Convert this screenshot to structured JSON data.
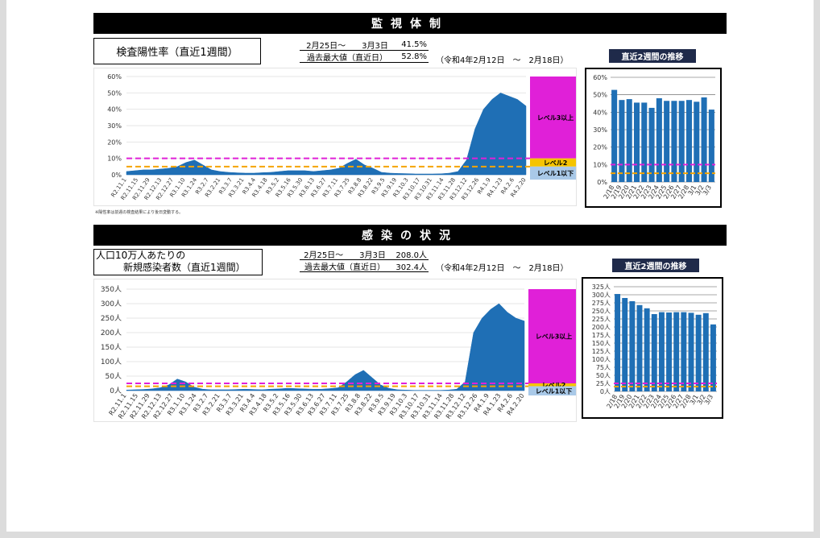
{
  "sections": {
    "monitoring": {
      "title": "監視体制",
      "metric_title": "検査陽性率（直近1週間）",
      "current_period": "2月25日～　　3月3日",
      "current_value": "41.5%",
      "max_label": "過去最大値（直近日）",
      "max_value": "52.8%",
      "max_period": "（令和4年2月12日　～　2月18日）",
      "footnote": "※陽性率は前週の検査結果により後日変動する。",
      "trend_title": "直近2週間の推移"
    },
    "infection": {
      "title": "感染の状況",
      "metric_title_line1": "人口10万人あたりの",
      "metric_title_line2": "新規感染者数（直近1週間）",
      "current_period": "2月25日～　　3月3日",
      "current_value": "208.0人",
      "max_label": "過去最大値（直近日）",
      "max_value": "302.4人",
      "max_period": "（令和4年2月12日　～　2月18日）",
      "trend_title": "直近2週間の推移"
    }
  },
  "level_labels": {
    "level3": "レベル3以上",
    "level2": "レベル2",
    "level1": "レベル1以下"
  },
  "colors": {
    "series": "#1f6fb5",
    "level3": "#e020d8",
    "level2": "#f5c400",
    "level1": "#a9c9e8",
    "level3_line": "#e020d8",
    "level2_line": "#f5a400"
  },
  "chart_data": [
    {
      "type": "area",
      "name": "positivity-main",
      "ylim": [
        0,
        60
      ],
      "yticks": [
        "0%",
        "10%",
        "20%",
        "30%",
        "40%",
        "50%",
        "60%"
      ],
      "xtick_labels": [
        "R2.11.1",
        "R2.11.15",
        "R2.11.29",
        "R2.12.13",
        "R2.12.27",
        "R3.1.10",
        "R3.1.24",
        "R3.2.7",
        "R3.2.21",
        "R3.3.7",
        "R3.3.21",
        "R3.4.4",
        "R3.4.18",
        "R3.5.2",
        "R3.5.16",
        "R3.5.30",
        "R3.6.13",
        "R3.6.27",
        "R3.7.11",
        "R3.7.25",
        "R3.8.8",
        "R3.8.22",
        "R3.9.5",
        "R3.9.19",
        "R3.10.3",
        "R3.10.17",
        "R3.10.31",
        "R3.11.14",
        "R3.11.28",
        "R3.12.12",
        "R3.12.26",
        "R4.1.9",
        "R4.1.23",
        "R4.2.6",
        "R4.2.20"
      ],
      "values": [
        2,
        2.5,
        3,
        3,
        3.5,
        4,
        5,
        7.5,
        9,
        6,
        3,
        2,
        1.5,
        1.2,
        1,
        1,
        1.3,
        1.5,
        2,
        2.5,
        2.5,
        2.5,
        2,
        2.5,
        3,
        4,
        7,
        9.5,
        6,
        4,
        1.5,
        1,
        0.8,
        0.7,
        0.5,
        0.5,
        0.5,
        0.6,
        1,
        2,
        9,
        28,
        40,
        46,
        50,
        48,
        46,
        42
      ],
      "level_lines": [
        {
          "level": "レベル3以上",
          "value": 10
        },
        {
          "level": "レベル2",
          "value": 5
        }
      ]
    },
    {
      "type": "bar",
      "name": "positivity-2weeks",
      "ylim": [
        0,
        60
      ],
      "yticks": [
        "0%",
        "10%",
        "20%",
        "30%",
        "40%",
        "50%",
        "60%"
      ],
      "categories": [
        "2/18",
        "2/19",
        "2/20",
        "2/21",
        "2/22",
        "2/23",
        "2/24",
        "2/25",
        "2/26",
        "2/27",
        "2/28",
        "3/1",
        "3/2",
        "3/3"
      ],
      "values": [
        52.8,
        47,
        47.5,
        45.5,
        45.5,
        42.5,
        48,
        46.5,
        46.5,
        46.5,
        47,
        46,
        48.5,
        41.5
      ],
      "level_lines": [
        {
          "level": "レベル3以上",
          "value": 10
        },
        {
          "level": "レベル2",
          "value": 5
        }
      ]
    },
    {
      "type": "area",
      "name": "cases-main",
      "ylim": [
        0,
        350
      ],
      "yticks": [
        "0人",
        "50人",
        "100人",
        "150人",
        "200人",
        "250人",
        "300人",
        "350人"
      ],
      "xtick_labels": [
        "R2.11.1",
        "R2.11.15",
        "R2.11.29",
        "R2.12.13",
        "R2.12.27",
        "R3.1.10",
        "R3.1.24",
        "R3.2.7",
        "R3.2.21",
        "R3.3.7",
        "R3.3.21",
        "R3.4.4",
        "R3.4.18",
        "R3.5.2",
        "R3.5.16",
        "R3.5.30",
        "R3.6.13",
        "R3.6.27",
        "R3.7.11",
        "R3.7.25",
        "R3.8.8",
        "R3.8.22",
        "R3.9.5",
        "R3.9.19",
        "R3.10.3",
        "R3.10.17",
        "R3.10.31",
        "R3.11.14",
        "R3.11.28",
        "R3.12.12",
        "R3.12.26",
        "R4.1.9",
        "R4.1.23",
        "R4.2.6",
        "R4.2.20"
      ],
      "values": [
        2,
        3,
        4,
        6,
        10,
        20,
        40,
        30,
        12,
        5,
        3,
        3,
        3,
        4,
        5,
        4,
        3,
        5,
        6,
        8,
        7,
        6,
        5,
        5,
        7,
        10,
        30,
        55,
        70,
        45,
        20,
        8,
        3,
        2,
        1,
        1,
        1,
        1,
        2,
        5,
        30,
        200,
        250,
        280,
        300,
        270,
        250,
        240
      ],
      "level_lines": [
        {
          "level": "レベル3以上",
          "value": 25
        },
        {
          "level": "レベル2",
          "value": 15
        }
      ]
    },
    {
      "type": "bar",
      "name": "cases-2weeks",
      "ylim": [
        0,
        325
      ],
      "yticks": [
        "0人",
        "25人",
        "50人",
        "75人",
        "100人",
        "125人",
        "150人",
        "175人",
        "200人",
        "225人",
        "250人",
        "275人",
        "300人",
        "325人"
      ],
      "categories": [
        "2/18",
        "2/19",
        "2/20",
        "2/21",
        "2/22",
        "2/23",
        "2/24",
        "2/25",
        "2/26",
        "2/27",
        "2/28",
        "3/1",
        "3/2",
        "3/3"
      ],
      "values": [
        302.4,
        290,
        280,
        268,
        258,
        240,
        246,
        245,
        246,
        246,
        244,
        238,
        243,
        208
      ],
      "level_lines": [
        {
          "level": "レベル3以上",
          "value": 25
        },
        {
          "level": "レベル2",
          "value": 15
        }
      ]
    }
  ]
}
